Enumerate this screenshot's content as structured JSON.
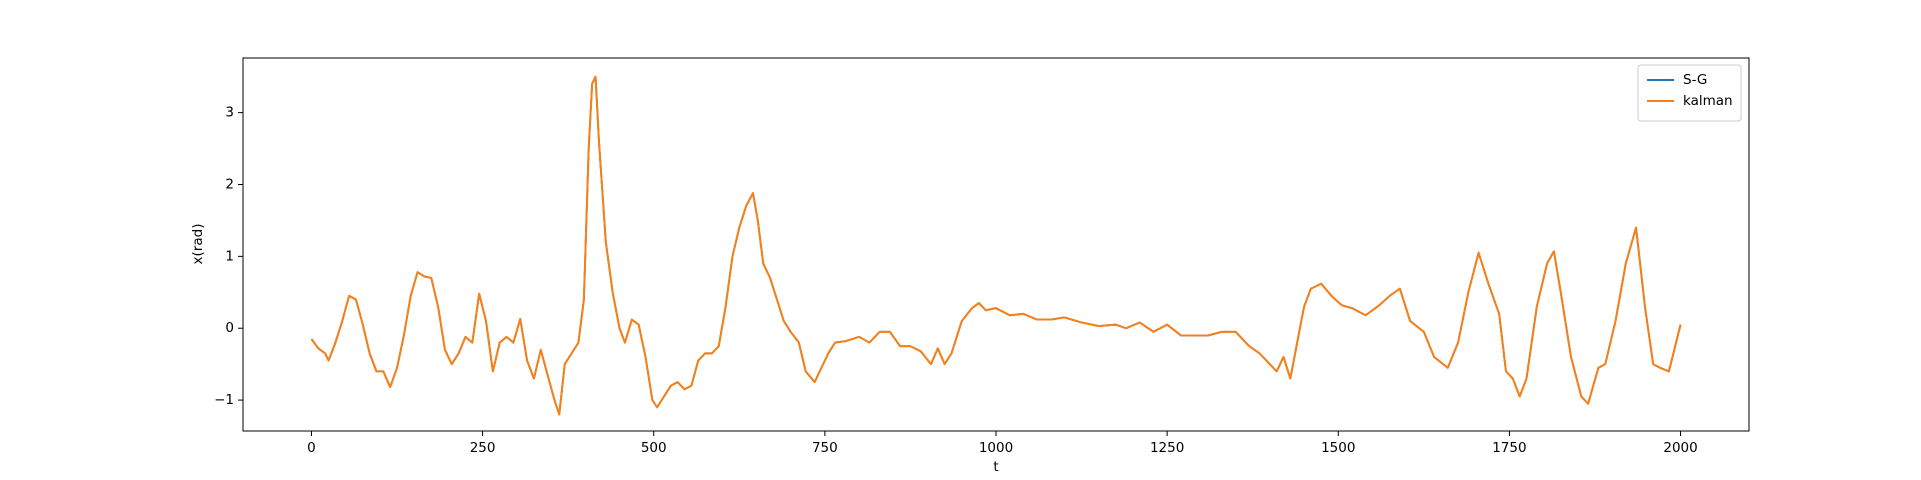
{
  "chart_data": {
    "type": "line",
    "xlabel": "t",
    "ylabel": "x(rad)",
    "x": [
      0,
      10,
      20,
      25,
      35,
      45,
      55,
      65,
      75,
      85,
      95,
      105,
      115,
      125,
      135,
      145,
      155,
      165,
      175,
      185,
      195,
      205,
      215,
      225,
      235,
      245,
      255,
      265,
      275,
      285,
      295,
      305,
      315,
      325,
      335,
      345,
      355,
      362,
      370,
      380,
      390,
      398,
      405,
      410,
      415,
      420,
      430,
      440,
      450,
      458,
      468,
      478,
      488,
      498,
      505,
      515,
      525,
      535,
      545,
      555,
      565,
      575,
      585,
      595,
      605,
      615,
      625,
      635,
      645,
      652,
      660,
      670,
      680,
      690,
      700,
      712,
      722,
      735,
      745,
      755,
      765,
      780,
      800,
      815,
      830,
      845,
      860,
      875,
      890,
      905,
      915,
      925,
      935,
      950,
      965,
      975,
      985,
      1000,
      1020,
      1040,
      1060,
      1080,
      1100,
      1125,
      1150,
      1175,
      1190,
      1210,
      1230,
      1250,
      1270,
      1290,
      1310,
      1330,
      1350,
      1370,
      1385,
      1400,
      1410,
      1420,
      1430,
      1440,
      1450,
      1460,
      1475,
      1490,
      1505,
      1520,
      1540,
      1560,
      1575,
      1590,
      1605,
      1625,
      1640,
      1660,
      1675,
      1690,
      1705,
      1720,
      1735,
      1745,
      1755,
      1765,
      1775,
      1790,
      1805,
      1815,
      1825,
      1840,
      1855,
      1865,
      1880,
      1890,
      1905,
      1920,
      1935,
      1948,
      1960,
      1970,
      1983,
      2000
    ],
    "series": [
      {
        "name": "S-G",
        "color": "#1f77b4",
        "values": [
          -0.15,
          -0.28,
          -0.35,
          -0.45,
          -0.2,
          0.1,
          0.45,
          0.4,
          0.05,
          -0.35,
          -0.6,
          -0.6,
          -0.82,
          -0.55,
          -0.1,
          0.45,
          0.78,
          0.72,
          0.7,
          0.3,
          -0.3,
          -0.5,
          -0.35,
          -0.12,
          -0.2,
          0.48,
          0.1,
          -0.6,
          -0.2,
          -0.12,
          -0.2,
          0.13,
          -0.45,
          -0.7,
          -0.3,
          -0.65,
          -1.0,
          -1.2,
          -0.5,
          -0.35,
          -0.2,
          0.4,
          2.5,
          3.4,
          3.5,
          2.6,
          1.2,
          0.5,
          0.0,
          -0.2,
          0.12,
          0.05,
          -0.4,
          -1.0,
          -1.1,
          -0.95,
          -0.8,
          -0.75,
          -0.85,
          -0.8,
          -0.45,
          -0.35,
          -0.35,
          -0.25,
          0.3,
          1.0,
          1.4,
          1.7,
          1.88,
          1.5,
          0.9,
          0.7,
          0.4,
          0.1,
          -0.05,
          -0.2,
          -0.6,
          -0.75,
          -0.55,
          -0.35,
          -0.2,
          -0.18,
          -0.12,
          -0.2,
          -0.05,
          -0.05,
          -0.25,
          -0.25,
          -0.32,
          -0.5,
          -0.28,
          -0.5,
          -0.35,
          0.1,
          0.28,
          0.35,
          0.25,
          0.28,
          0.18,
          0.2,
          0.12,
          0.12,
          0.15,
          0.08,
          0.03,
          0.05,
          0.0,
          0.08,
          -0.05,
          0.05,
          -0.1,
          -0.1,
          -0.1,
          -0.05,
          -0.05,
          -0.25,
          -0.35,
          -0.5,
          -0.6,
          -0.4,
          -0.7,
          -0.2,
          0.3,
          0.55,
          0.62,
          0.45,
          0.32,
          0.28,
          0.18,
          0.32,
          0.45,
          0.55,
          0.1,
          -0.05,
          -0.4,
          -0.55,
          -0.2,
          0.5,
          1.05,
          0.6,
          0.2,
          -0.6,
          -0.7,
          -0.95,
          -0.7,
          0.3,
          0.9,
          1.07,
          0.5,
          -0.4,
          -0.95,
          -1.05,
          -0.55,
          -0.5,
          0.1,
          0.9,
          1.4,
          0.3,
          -0.5,
          -0.55,
          -0.6,
          0.05
        ]
      },
      {
        "name": "kalman",
        "color": "#ff7f0e",
        "values": [
          -0.15,
          -0.28,
          -0.35,
          -0.45,
          -0.2,
          0.1,
          0.45,
          0.4,
          0.05,
          -0.35,
          -0.6,
          -0.6,
          -0.82,
          -0.55,
          -0.1,
          0.45,
          0.78,
          0.72,
          0.7,
          0.3,
          -0.3,
          -0.5,
          -0.35,
          -0.12,
          -0.2,
          0.48,
          0.1,
          -0.6,
          -0.2,
          -0.12,
          -0.2,
          0.13,
          -0.45,
          -0.7,
          -0.3,
          -0.65,
          -1.0,
          -1.2,
          -0.5,
          -0.35,
          -0.2,
          0.4,
          2.5,
          3.4,
          3.5,
          2.6,
          1.2,
          0.5,
          0.0,
          -0.2,
          0.12,
          0.05,
          -0.4,
          -1.0,
          -1.1,
          -0.95,
          -0.8,
          -0.75,
          -0.85,
          -0.8,
          -0.45,
          -0.35,
          -0.35,
          -0.25,
          0.3,
          1.0,
          1.4,
          1.7,
          1.88,
          1.5,
          0.9,
          0.7,
          0.4,
          0.1,
          -0.05,
          -0.2,
          -0.6,
          -0.75,
          -0.55,
          -0.35,
          -0.2,
          -0.18,
          -0.12,
          -0.2,
          -0.05,
          -0.05,
          -0.25,
          -0.25,
          -0.32,
          -0.5,
          -0.28,
          -0.5,
          -0.35,
          0.1,
          0.28,
          0.35,
          0.25,
          0.28,
          0.18,
          0.2,
          0.12,
          0.12,
          0.15,
          0.08,
          0.03,
          0.05,
          0.0,
          0.08,
          -0.05,
          0.05,
          -0.1,
          -0.1,
          -0.1,
          -0.05,
          -0.05,
          -0.25,
          -0.35,
          -0.5,
          -0.6,
          -0.4,
          -0.7,
          -0.2,
          0.3,
          0.55,
          0.62,
          0.45,
          0.32,
          0.28,
          0.18,
          0.32,
          0.45,
          0.55,
          0.1,
          -0.05,
          -0.4,
          -0.55,
          -0.2,
          0.5,
          1.05,
          0.6,
          0.2,
          -0.6,
          -0.7,
          -0.95,
          -0.7,
          0.3,
          0.9,
          1.07,
          0.5,
          -0.4,
          -0.95,
          -1.05,
          -0.55,
          -0.5,
          0.1,
          0.9,
          1.4,
          0.3,
          -0.5,
          -0.55,
          -0.6,
          0.05
        ]
      }
    ],
    "xlim": [
      -100,
      2100
    ],
    "xticks": [
      0,
      250,
      500,
      750,
      1000,
      1250,
      1500,
      1750,
      2000
    ],
    "ylim": [
      -1.43,
      3.76
    ],
    "yticks": [
      {
        "value": -1,
        "label": "−1"
      },
      0,
      1,
      2,
      3
    ],
    "legend": "upper right"
  }
}
